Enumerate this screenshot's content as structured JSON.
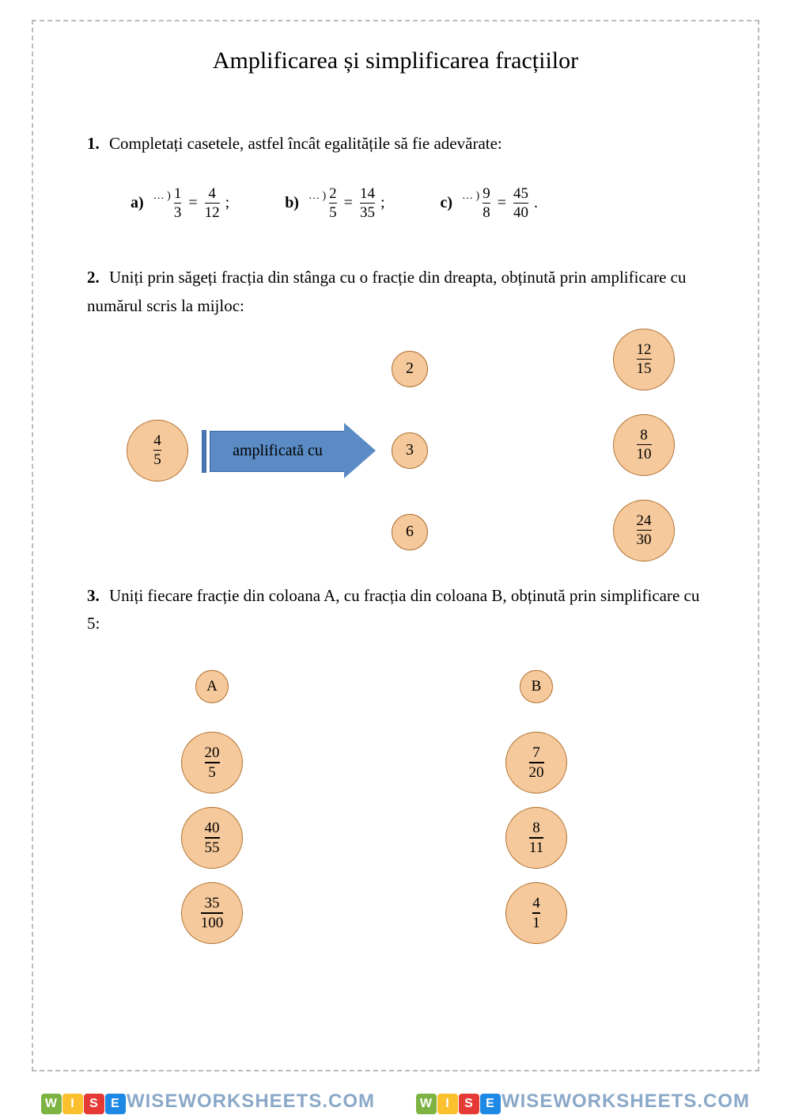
{
  "title": "Amplificarea și simplificarea fracțiilor",
  "colors": {
    "circle_fill": "#f5c99b",
    "circle_border": "#b07030",
    "arrow_fill": "#5a8bc4",
    "arrow_border": "#3a6ba4"
  },
  "q1": {
    "number": "1.",
    "text": "Completați casetele, astfel încât egalitățile să fie adevărate:",
    "items": [
      {
        "label": "a)",
        "sup": "… )",
        "f1n": "1",
        "f1d": "3",
        "f2n": "4",
        "f2d": "12",
        "end": ";"
      },
      {
        "label": "b)",
        "sup": "… )",
        "f1n": "2",
        "f1d": "5",
        "f2n": "14",
        "f2d": "35",
        "end": ";"
      },
      {
        "label": "c)",
        "sup": "… )",
        "f1n": "9",
        "f1d": "8",
        "f2n": "45",
        "f2d": "40",
        "end": "."
      }
    ]
  },
  "q2": {
    "number": "2.",
    "text": "Uniți prin săgeți fracția din stânga cu o fracție din dreapta, obținută prin amplificare cu numărul scris la mijloc:",
    "left_frac": {
      "n": "4",
      "d": "5"
    },
    "arrow_label": "amplificată cu",
    "middle": [
      "2",
      "3",
      "6"
    ],
    "right": [
      {
        "n": "12",
        "d": "15"
      },
      {
        "n": "8",
        "d": "10"
      },
      {
        "n": "24",
        "d": "30"
      }
    ]
  },
  "q3": {
    "number": "3.",
    "text": "Uniți fiecare fracție din coloana A, cu fracția din coloana B, obținută prin simplificare cu 5:",
    "col_a_label": "A",
    "col_b_label": "B",
    "col_a": [
      {
        "n": "20",
        "d": "5"
      },
      {
        "n": "40",
        "d": "55"
      },
      {
        "n": "35",
        "d": "100"
      }
    ],
    "col_b": [
      {
        "n": "7",
        "d": "20"
      },
      {
        "n": "8",
        "d": "11"
      },
      {
        "n": "4",
        "d": "1"
      }
    ]
  },
  "watermark": {
    "blocks": [
      {
        "t": "W",
        "c": "#7cb342"
      },
      {
        "t": "I",
        "c": "#fbc02d"
      },
      {
        "t": "S",
        "c": "#e53935"
      },
      {
        "t": "E",
        "c": "#1e88e5"
      }
    ],
    "text": "WISEWORKSHEETS.COM"
  }
}
